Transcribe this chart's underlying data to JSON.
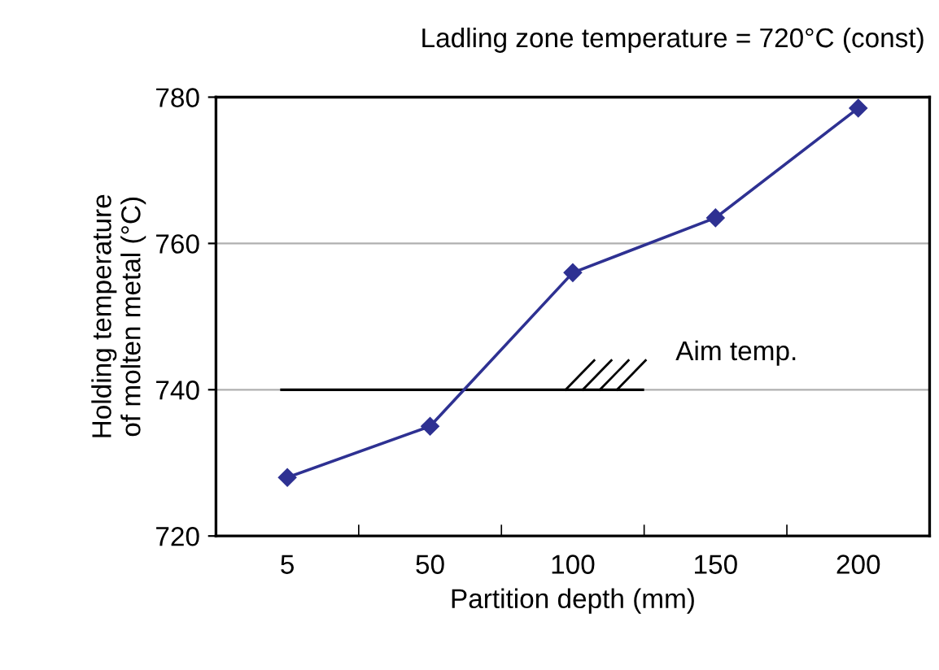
{
  "chart_data": {
    "type": "line",
    "title": "Ladling zone temperature = 720°C (const)",
    "xlabel": "Partition depth (mm)",
    "ylabel": "Holding temperature\nof molten metal (°C)",
    "categories": [
      "5",
      "50",
      "100",
      "150",
      "200"
    ],
    "series": [
      {
        "color": "#2e3192",
        "values": [
          728,
          735,
          756,
          763.5,
          778.5
        ]
      }
    ],
    "ylim": [
      720,
      780
    ],
    "yticks": [
      720,
      740,
      760,
      780
    ],
    "grid": "y",
    "marker": "diamond",
    "line_style": "solid",
    "ref_lines": [
      {
        "axis": "y",
        "value": 740,
        "label": "Aim temp.",
        "color": "#000000"
      }
    ]
  }
}
